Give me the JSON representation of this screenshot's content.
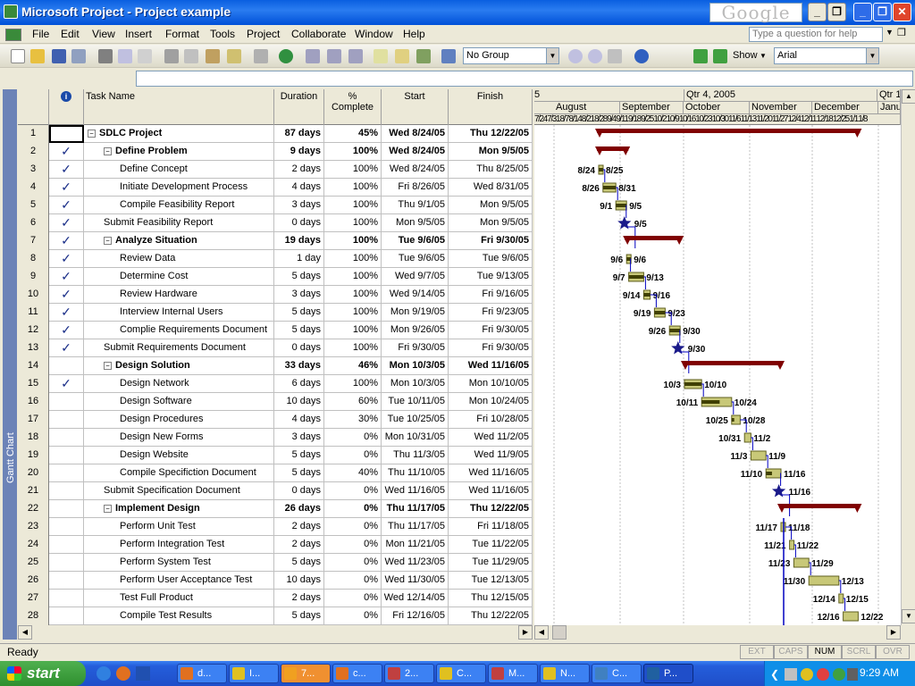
{
  "window": {
    "title": "Microsoft Project - Project example",
    "google_label": "Google"
  },
  "menu": [
    "File",
    "Edit",
    "View",
    "Insert",
    "Format",
    "Tools",
    "Project",
    "Collaborate",
    "Window",
    "Help"
  ],
  "help_placeholder": "Type a question for help",
  "toolbar": {
    "group_select": "No Group",
    "show_label": "Show",
    "font_select": "Arial"
  },
  "sidebar_label": "Gantt Chart",
  "columns": {
    "info": "i",
    "task_name": "Task Name",
    "duration": "Duration",
    "complete": "% Complete",
    "start": "Start",
    "finish": "Finish"
  },
  "gantt_header": {
    "top": [
      "5",
      "Qtr 4, 2005",
      "Qtr 1"
    ],
    "months": [
      "August",
      "September",
      "October",
      "November",
      "December",
      "Janu"
    ],
    "days": "7/24 7/31 8/7 8/14 8/21 8/28 9/4 9/11 9/18 9/25 10/2 10/9 10/16 10/23 10/30 11/6 11/13 11/20 11/27 12/4 12/11 12/18 12/25 1/1 1/8"
  },
  "tasks": [
    {
      "id": "1",
      "level": 0,
      "summary": true,
      "done": false,
      "name": "SDLC Project",
      "duration": "87 days",
      "complete": "45%",
      "start": "Wed 8/24/05",
      "finish": "Thu 12/22/05",
      "bar": {
        "type": "summary",
        "s": 0,
        "e": 120
      }
    },
    {
      "id": "2",
      "level": 1,
      "summary": true,
      "done": true,
      "name": "Define Problem",
      "duration": "9 days",
      "complete": "100%",
      "start": "Wed 8/24/05",
      "finish": "Mon 9/5/05",
      "bar": {
        "type": "summary",
        "s": 0,
        "e": 12
      }
    },
    {
      "id": "3",
      "level": 2,
      "summary": false,
      "done": true,
      "name": "Define Concept",
      "duration": "2 days",
      "complete": "100%",
      "start": "Wed 8/24/05",
      "finish": "Thu 8/25/05",
      "bar": {
        "type": "task",
        "s": 0,
        "e": 1,
        "ls": "8/24",
        "le": "8/25"
      }
    },
    {
      "id": "4",
      "level": 2,
      "summary": false,
      "done": true,
      "name": "Initiate Development Process",
      "duration": "4 days",
      "complete": "100%",
      "start": "Fri 8/26/05",
      "finish": "Wed 8/31/05",
      "bar": {
        "type": "task",
        "s": 2,
        "e": 7,
        "ls": "8/26",
        "le": "8/31"
      }
    },
    {
      "id": "5",
      "level": 2,
      "summary": false,
      "done": true,
      "name": "Compile Feasibility Report",
      "duration": "3 days",
      "complete": "100%",
      "start": "Thu 9/1/05",
      "finish": "Mon 9/5/05",
      "bar": {
        "type": "task",
        "s": 8,
        "e": 12,
        "ls": "9/1",
        "le": "9/5"
      }
    },
    {
      "id": "6",
      "level": 1,
      "summary": false,
      "done": true,
      "name": "Submit Feasibility Report",
      "duration": "0 days",
      "complete": "100%",
      "start": "Mon 9/5/05",
      "finish": "Mon 9/5/05",
      "bar": {
        "type": "milestone",
        "s": 12,
        "e": 12,
        "le": "9/5"
      }
    },
    {
      "id": "7",
      "level": 1,
      "summary": true,
      "done": true,
      "name": "Analyze Situation",
      "duration": "19 days",
      "complete": "100%",
      "start": "Tue 9/6/05",
      "finish": "Fri 9/30/05",
      "bar": {
        "type": "summary",
        "s": 13,
        "e": 37
      }
    },
    {
      "id": "8",
      "level": 2,
      "summary": false,
      "done": true,
      "name": "Review Data",
      "duration": "1 day",
      "complete": "100%",
      "start": "Tue 9/6/05",
      "finish": "Tue 9/6/05",
      "bar": {
        "type": "task",
        "s": 13,
        "e": 13,
        "ls": "9/6",
        "le": "9/6"
      }
    },
    {
      "id": "9",
      "level": 2,
      "summary": false,
      "done": true,
      "name": "Determine Cost",
      "duration": "5 days",
      "complete": "100%",
      "start": "Wed 9/7/05",
      "finish": "Tue 9/13/05",
      "bar": {
        "type": "task",
        "s": 14,
        "e": 20,
        "ls": "9/7",
        "le": "9/13"
      }
    },
    {
      "id": "10",
      "level": 2,
      "summary": false,
      "done": true,
      "name": "Review Hardware",
      "duration": "3 days",
      "complete": "100%",
      "start": "Wed 9/14/05",
      "finish": "Fri 9/16/05",
      "bar": {
        "type": "task",
        "s": 21,
        "e": 23,
        "ls": "9/14",
        "le": "9/16"
      }
    },
    {
      "id": "11",
      "level": 2,
      "summary": false,
      "done": true,
      "name": "Interview Internal Users",
      "duration": "5 days",
      "complete": "100%",
      "start": "Mon 9/19/05",
      "finish": "Fri 9/23/05",
      "bar": {
        "type": "task",
        "s": 26,
        "e": 30,
        "ls": "9/19",
        "le": "9/23"
      }
    },
    {
      "id": "12",
      "level": 2,
      "summary": false,
      "done": true,
      "name": "Complie Requirements Document",
      "duration": "5 days",
      "complete": "100%",
      "start": "Mon 9/26/05",
      "finish": "Fri 9/30/05",
      "bar": {
        "type": "task",
        "s": 33,
        "e": 37,
        "ls": "9/26",
        "le": "9/30"
      }
    },
    {
      "id": "13",
      "level": 1,
      "summary": false,
      "done": true,
      "name": "Submit Requirements Document",
      "duration": "0 days",
      "complete": "100%",
      "start": "Fri 9/30/05",
      "finish": "Fri 9/30/05",
      "bar": {
        "type": "milestone",
        "s": 37,
        "e": 37,
        "le": "9/30"
      }
    },
    {
      "id": "14",
      "level": 1,
      "summary": true,
      "done": false,
      "name": "Design Solution",
      "duration": "33 days",
      "complete": "46%",
      "start": "Mon 10/3/05",
      "finish": "Wed 11/16/05",
      "bar": {
        "type": "summary",
        "s": 40,
        "e": 84
      }
    },
    {
      "id": "15",
      "level": 2,
      "summary": false,
      "done": true,
      "name": "Design Network",
      "duration": "6 days",
      "complete": "100%",
      "start": "Mon 10/3/05",
      "finish": "Mon 10/10/05",
      "bar": {
        "type": "task",
        "s": 40,
        "e": 47,
        "ls": "10/3",
        "le": "10/10"
      }
    },
    {
      "id": "16",
      "level": 2,
      "summary": false,
      "done": false,
      "name": "Design Software",
      "duration": "10 days",
      "complete": "60%",
      "start": "Tue 10/11/05",
      "finish": "Mon 10/24/05",
      "bar": {
        "type": "task",
        "s": 48,
        "e": 61,
        "ls": "10/11",
        "le": "10/24"
      }
    },
    {
      "id": "17",
      "level": 2,
      "summary": false,
      "done": false,
      "name": "Design Procedures",
      "duration": "4 days",
      "complete": "30%",
      "start": "Tue 10/25/05",
      "finish": "Fri 10/28/05",
      "bar": {
        "type": "task",
        "s": 62,
        "e": 65,
        "ls": "10/25",
        "le": "10/28"
      }
    },
    {
      "id": "18",
      "level": 2,
      "summary": false,
      "done": false,
      "name": "Design New Forms",
      "duration": "3 days",
      "complete": "0%",
      "start": "Mon 10/31/05",
      "finish": "Wed 11/2/05",
      "bar": {
        "type": "task",
        "s": 68,
        "e": 70,
        "ls": "10/31",
        "le": "11/2"
      }
    },
    {
      "id": "19",
      "level": 2,
      "summary": false,
      "done": false,
      "name": "Design Website",
      "duration": "5 days",
      "complete": "0%",
      "start": "Thu 11/3/05",
      "finish": "Wed 11/9/05",
      "bar": {
        "type": "task",
        "s": 71,
        "e": 77,
        "ls": "11/3",
        "le": "11/9"
      }
    },
    {
      "id": "20",
      "level": 2,
      "summary": false,
      "done": false,
      "name": "Compile Specifiction Document",
      "duration": "5 days",
      "complete": "40%",
      "start": "Thu 11/10/05",
      "finish": "Wed 11/16/05",
      "bar": {
        "type": "task",
        "s": 78,
        "e": 84,
        "ls": "11/10",
        "le": "11/16"
      }
    },
    {
      "id": "21",
      "level": 1,
      "summary": false,
      "done": false,
      "name": "Submit Specification Document",
      "duration": "0 days",
      "complete": "0%",
      "start": "Wed 11/16/05",
      "finish": "Wed 11/16/05",
      "bar": {
        "type": "milestone",
        "s": 84,
        "e": 84,
        "le": "11/16"
      }
    },
    {
      "id": "22",
      "level": 1,
      "summary": true,
      "done": false,
      "name": "Implement Design",
      "duration": "26 days",
      "complete": "0%",
      "start": "Thu 11/17/05",
      "finish": "Thu 12/22/05",
      "bar": {
        "type": "summary",
        "s": 85,
        "e": 120
      }
    },
    {
      "id": "23",
      "level": 2,
      "summary": false,
      "done": false,
      "name": "Perform Unit Test",
      "duration": "2 days",
      "complete": "0%",
      "start": "Thu 11/17/05",
      "finish": "Fri 11/18/05",
      "bar": {
        "type": "task",
        "s": 85,
        "e": 86,
        "ls": "11/17",
        "le": "11/18"
      }
    },
    {
      "id": "24",
      "level": 2,
      "summary": false,
      "done": false,
      "name": "Perform Integration Test",
      "duration": "2 days",
      "complete": "0%",
      "start": "Mon 11/21/05",
      "finish": "Tue 11/22/05",
      "bar": {
        "type": "task",
        "s": 89,
        "e": 90,
        "ls": "11/21",
        "le": "11/22"
      }
    },
    {
      "id": "25",
      "level": 2,
      "summary": false,
      "done": false,
      "name": "Perform System Test",
      "duration": "5 days",
      "complete": "0%",
      "start": "Wed 11/23/05",
      "finish": "Tue 11/29/05",
      "bar": {
        "type": "task",
        "s": 91,
        "e": 97,
        "ls": "11/23",
        "le": "11/29"
      }
    },
    {
      "id": "26",
      "level": 2,
      "summary": false,
      "done": false,
      "name": "Perform User Acceptance Test",
      "duration": "10 days",
      "complete": "0%",
      "start": "Wed 11/30/05",
      "finish": "Tue 12/13/05",
      "bar": {
        "type": "task",
        "s": 98,
        "e": 111,
        "ls": "11/30",
        "le": "12/13"
      }
    },
    {
      "id": "27",
      "level": 2,
      "summary": false,
      "done": false,
      "name": "Test Full Product",
      "duration": "2 days",
      "complete": "0%",
      "start": "Wed 12/14/05",
      "finish": "Thu 12/15/05",
      "bar": {
        "type": "task",
        "s": 112,
        "e": 113,
        "ls": "12/14",
        "le": "12/15"
      }
    },
    {
      "id": "28",
      "level": 2,
      "summary": false,
      "done": false,
      "name": "Compile Test Results",
      "duration": "5 days",
      "complete": "0%",
      "start": "Fri 12/16/05",
      "finish": "Thu 12/22/05",
      "bar": {
        "type": "task",
        "s": 114,
        "e": 120,
        "ls": "12/16",
        "le": "12/22"
      }
    }
  ],
  "status": {
    "text": "Ready",
    "indicators": [
      "EXT",
      "CAPS",
      "NUM",
      "SCRL",
      "OVR"
    ],
    "active": "NUM"
  },
  "taskbar": {
    "start": "start",
    "buttons": [
      "d...",
      "I...",
      "7...",
      "c...",
      "2...",
      "C...",
      "M...",
      "N...",
      "C...",
      "P..."
    ],
    "clock": "9:29 AM"
  },
  "colors": {
    "summary": "#800000",
    "task": "#c8c878",
    "milestone": "#1a1a8a",
    "link": "#0000c0"
  }
}
